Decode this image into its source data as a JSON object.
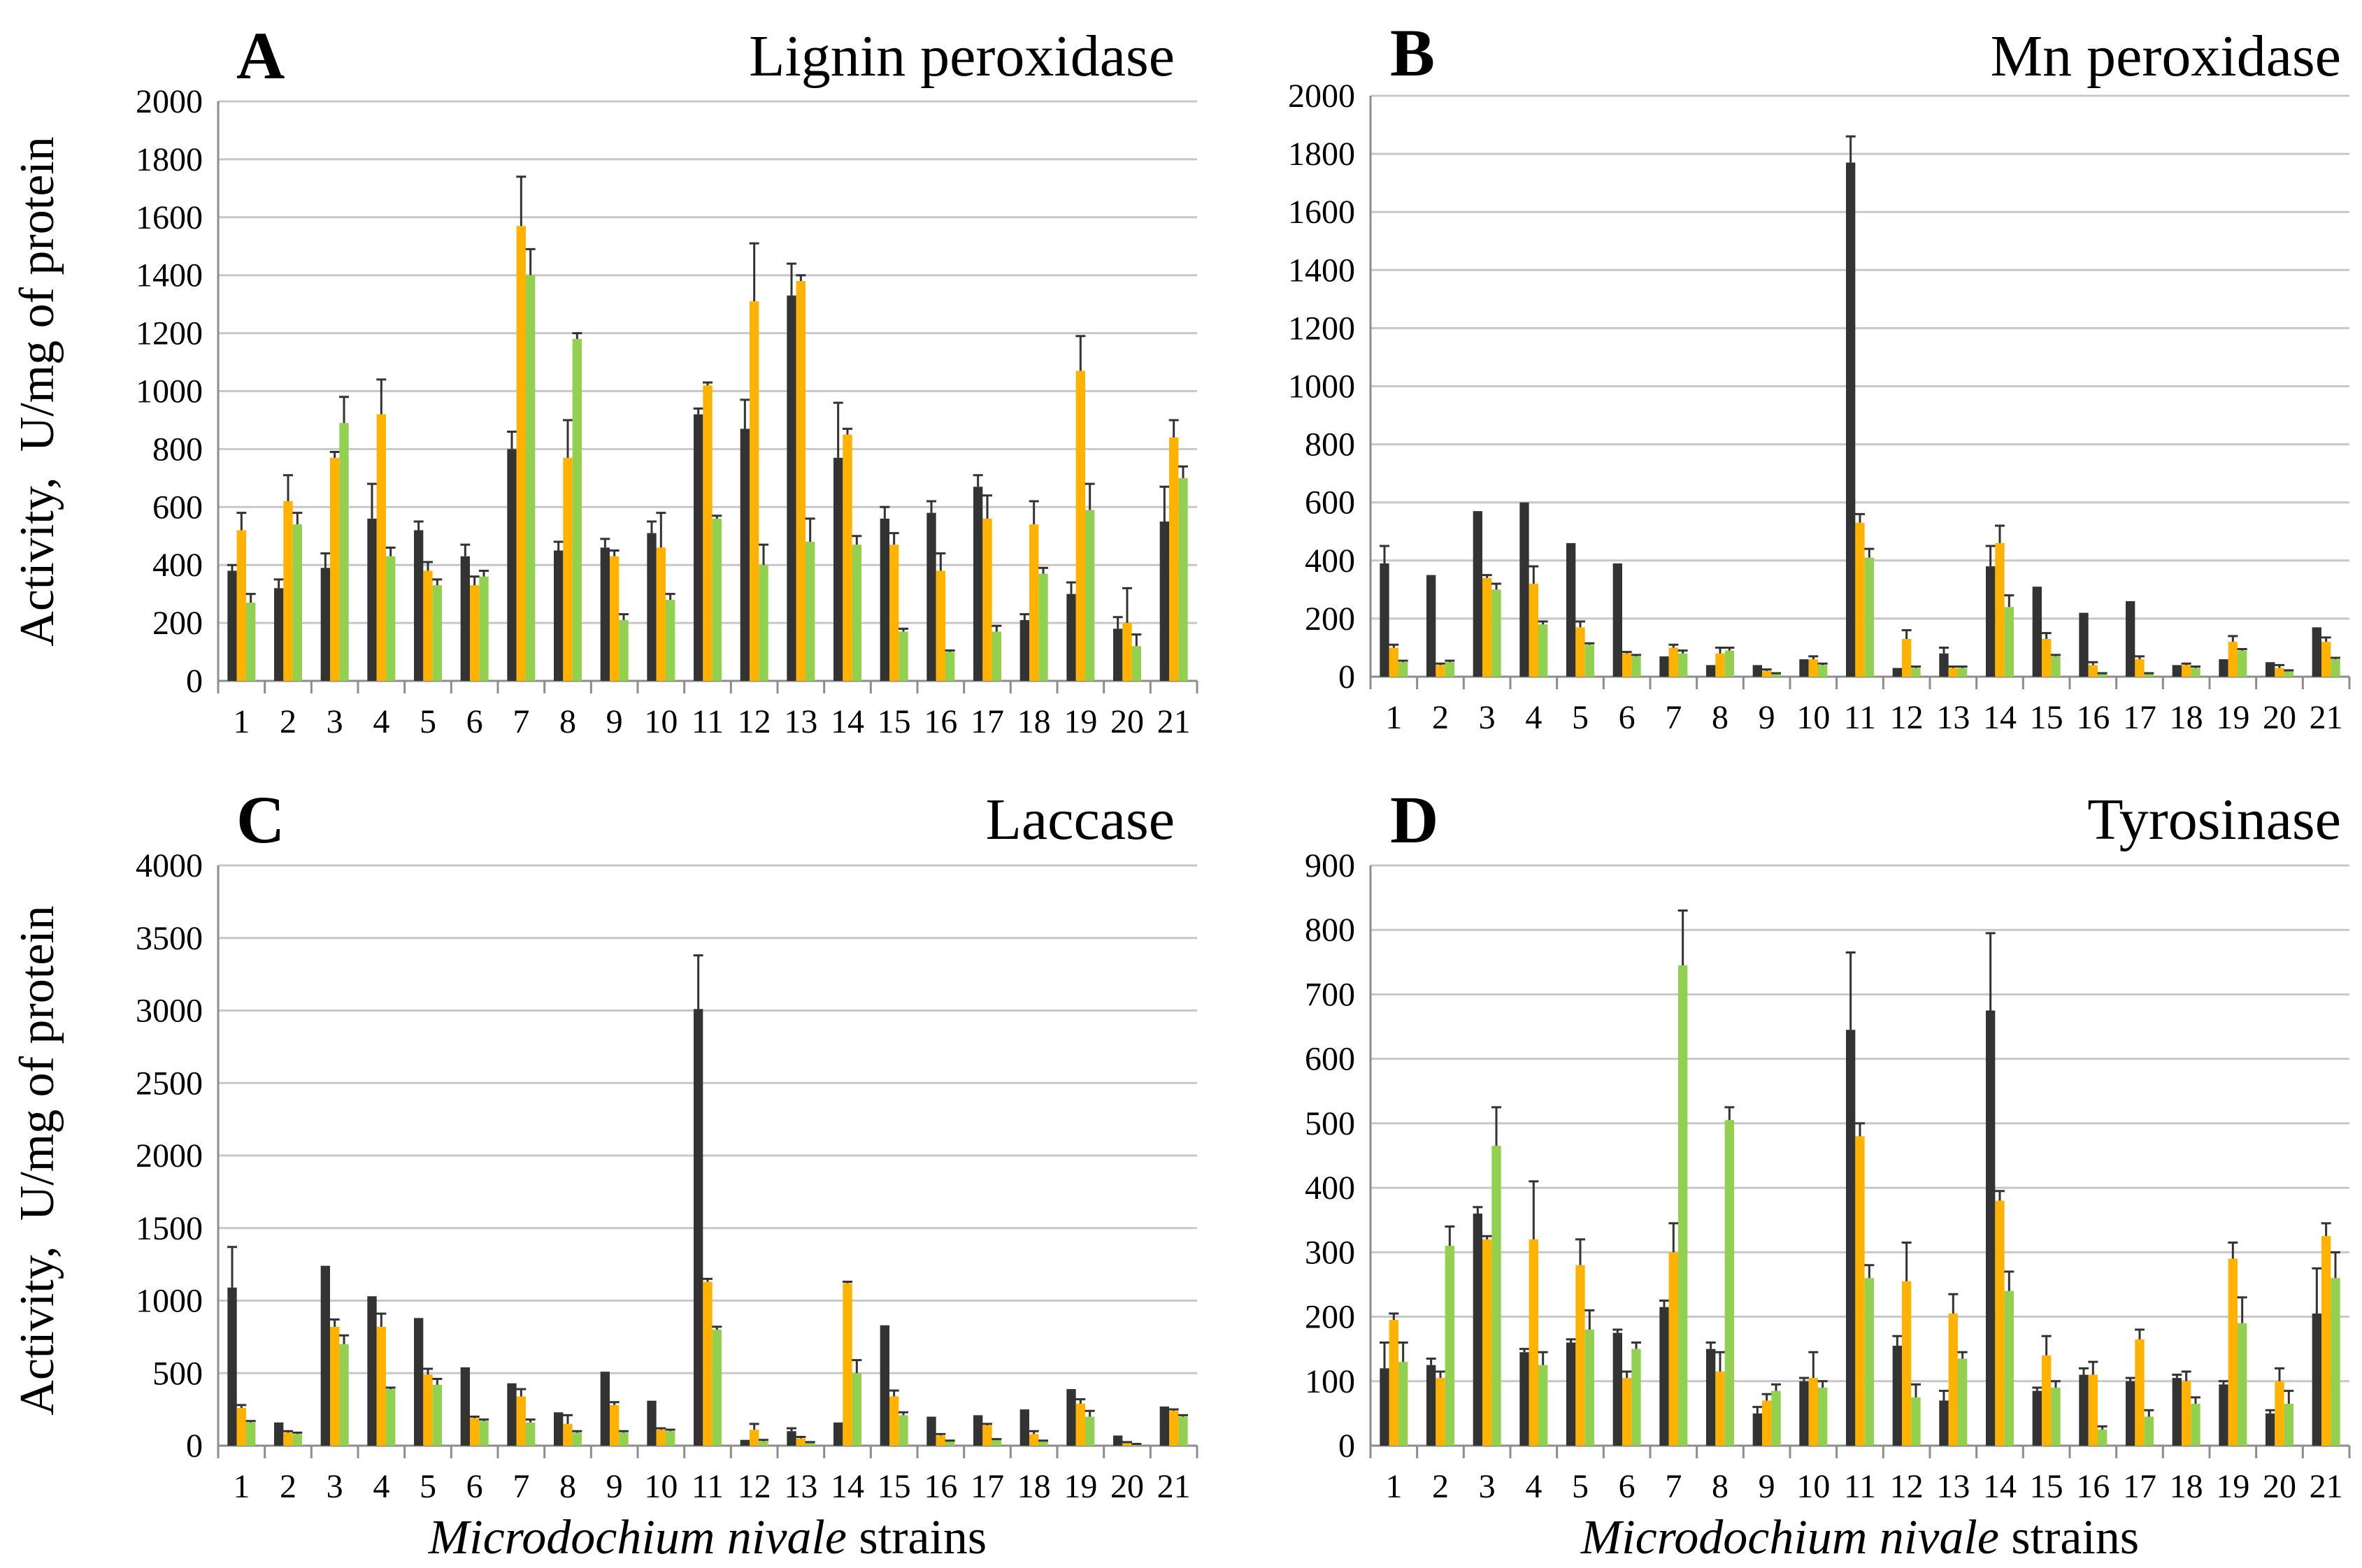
{
  "colors": {
    "series1": "#333333",
    "series2": "#FFB300",
    "series3": "#92D050"
  },
  "y_axis_label": {
    "left": "Activity,",
    "right": "U/mg of protein"
  },
  "x_axis_label": {
    "italic": "Microdochium nivale",
    "normal": " strains"
  },
  "chart_data": [
    {
      "type": "bar",
      "letter": "A",
      "title": "Lignin peroxidase",
      "categories": [
        "1",
        "2",
        "3",
        "4",
        "5",
        "6",
        "7",
        "8",
        "9",
        "10",
        "11",
        "12",
        "13",
        "14",
        "15",
        "16",
        "17",
        "18",
        "19",
        "20",
        "21"
      ],
      "ylim": [
        0,
        2000
      ],
      "yticks": [
        "0",
        "200",
        "400",
        "600",
        "800",
        "1000",
        "1200",
        "1400",
        "1600",
        "1800",
        "2000"
      ],
      "series": [
        {
          "name": "series1",
          "values": [
            380,
            320,
            390,
            560,
            520,
            430,
            800,
            450,
            460,
            510,
            920,
            870,
            1330,
            770,
            560,
            580,
            670,
            210,
            300,
            180,
            550
          ],
          "errors": [
            20,
            30,
            50,
            120,
            30,
            40,
            60,
            30,
            30,
            40,
            20,
            100,
            110,
            190,
            40,
            40,
            40,
            20,
            40,
            40,
            120
          ]
        },
        {
          "name": "series2",
          "values": [
            520,
            620,
            770,
            920,
            380,
            330,
            1570,
            770,
            430,
            460,
            1020,
            1310,
            1380,
            850,
            470,
            380,
            560,
            540,
            1070,
            200,
            840
          ],
          "errors": [
            60,
            90,
            20,
            120,
            30,
            30,
            170,
            130,
            20,
            120,
            10,
            200,
            20,
            20,
            40,
            60,
            80,
            80,
            120,
            120,
            60
          ]
        },
        {
          "name": "series3",
          "values": [
            270,
            540,
            890,
            430,
            330,
            360,
            1400,
            1180,
            210,
            280,
            560,
            400,
            480,
            470,
            170,
            100,
            170,
            370,
            590,
            120,
            700
          ],
          "errors": [
            30,
            40,
            90,
            30,
            20,
            20,
            90,
            20,
            20,
            20,
            10,
            70,
            80,
            30,
            10,
            5,
            20,
            20,
            90,
            40,
            40
          ]
        }
      ]
    },
    {
      "type": "bar",
      "letter": "B",
      "title": "Mn peroxidase",
      "categories": [
        "1",
        "2",
        "3",
        "4",
        "5",
        "6",
        "7",
        "8",
        "9",
        "10",
        "11",
        "12",
        "13",
        "14",
        "15",
        "16",
        "17",
        "18",
        "19",
        "20",
        "21"
      ],
      "ylim": [
        0,
        2000
      ],
      "yticks": [
        "0",
        "200",
        "400",
        "600",
        "800",
        "1000",
        "1200",
        "1400",
        "1600",
        "1800",
        "2000"
      ],
      "series": [
        {
          "name": "series1",
          "values": [
            390,
            350,
            570,
            600,
            460,
            390,
            70,
            40,
            40,
            60,
            1770,
            30,
            80,
            380,
            310,
            220,
            260,
            40,
            60,
            50,
            170
          ],
          "errors": [
            60,
            0,
            0,
            0,
            0,
            0,
            0,
            0,
            0,
            0,
            90,
            0,
            20,
            70,
            0,
            0,
            0,
            0,
            0,
            0,
            0
          ]
        },
        {
          "name": "series2",
          "values": [
            100,
            40,
            340,
            320,
            170,
            80,
            100,
            80,
            20,
            60,
            530,
            130,
            30,
            460,
            130,
            40,
            60,
            40,
            120,
            30,
            120
          ],
          "errors": [
            10,
            5,
            10,
            60,
            20,
            5,
            10,
            20,
            5,
            10,
            30,
            30,
            5,
            60,
            20,
            10,
            10,
            5,
            20,
            10,
            15
          ]
        },
        {
          "name": "series3",
          "values": [
            50,
            50,
            300,
            180,
            110,
            70,
            80,
            90,
            10,
            40,
            410,
            30,
            30,
            240,
            70,
            10,
            10,
            30,
            90,
            20,
            60
          ],
          "errors": [
            5,
            5,
            20,
            10,
            5,
            5,
            10,
            10,
            2,
            5,
            30,
            5,
            5,
            40,
            5,
            2,
            2,
            5,
            5,
            2,
            5
          ]
        }
      ]
    },
    {
      "type": "bar",
      "letter": "C",
      "title": "Laccase",
      "categories": [
        "1",
        "2",
        "3",
        "4",
        "5",
        "6",
        "7",
        "8",
        "9",
        "10",
        "11",
        "12",
        "13",
        "14",
        "15",
        "16",
        "17",
        "18",
        "19",
        "20",
        "21"
      ],
      "ylim": [
        0,
        4000
      ],
      "yticks": [
        "0",
        "500",
        "1000",
        "1500",
        "2000",
        "2500",
        "3000",
        "3500",
        "4000"
      ],
      "series": [
        {
          "name": "series1",
          "values": [
            1090,
            160,
            1240,
            1030,
            880,
            540,
            430,
            230,
            510,
            310,
            3010,
            40,
            100,
            160,
            830,
            200,
            210,
            250,
            390,
            70,
            270
          ],
          "errors": [
            280,
            0,
            0,
            0,
            0,
            0,
            0,
            0,
            0,
            0,
            370,
            0,
            20,
            0,
            0,
            0,
            0,
            0,
            0,
            0,
            0
          ]
        },
        {
          "name": "series2",
          "values": [
            260,
            90,
            820,
            820,
            490,
            190,
            340,
            150,
            280,
            110,
            1130,
            110,
            50,
            1120,
            340,
            70,
            140,
            80,
            290,
            20,
            240
          ],
          "errors": [
            20,
            10,
            50,
            90,
            40,
            10,
            50,
            60,
            20,
            10,
            20,
            40,
            10,
            10,
            40,
            10,
            10,
            20,
            30,
            5,
            10
          ]
        },
        {
          "name": "series3",
          "values": [
            160,
            80,
            700,
            390,
            420,
            170,
            160,
            90,
            90,
            100,
            800,
            30,
            20,
            500,
            210,
            30,
            40,
            30,
            200,
            10,
            200
          ],
          "errors": [
            10,
            10,
            60,
            10,
            40,
            10,
            20,
            10,
            10,
            10,
            20,
            10,
            5,
            90,
            20,
            5,
            5,
            5,
            40,
            2,
            10
          ]
        }
      ]
    },
    {
      "type": "bar",
      "letter": "D",
      "title": "Tyrosinase",
      "categories": [
        "1",
        "2",
        "3",
        "4",
        "5",
        "6",
        "7",
        "8",
        "9",
        "10",
        "11",
        "12",
        "13",
        "14",
        "15",
        "16",
        "17",
        "18",
        "19",
        "20",
        "21"
      ],
      "ylim": [
        0,
        900
      ],
      "yticks": [
        "0",
        "100",
        "200",
        "300",
        "400",
        "500",
        "600",
        "700",
        "800",
        "900"
      ],
      "series": [
        {
          "name": "series1",
          "values": [
            120,
            125,
            360,
            145,
            160,
            175,
            215,
            150,
            50,
            100,
            645,
            155,
            70,
            675,
            85,
            110,
            100,
            105,
            95,
            50,
            205
          ],
          "errors": [
            40,
            10,
            10,
            5,
            5,
            5,
            10,
            10,
            10,
            5,
            120,
            15,
            15,
            120,
            5,
            10,
            5,
            5,
            5,
            5,
            70
          ]
        },
        {
          "name": "series2",
          "values": [
            195,
            105,
            320,
            320,
            280,
            105,
            300,
            115,
            70,
            105,
            480,
            255,
            205,
            380,
            140,
            110,
            165,
            100,
            290,
            100,
            325
          ],
          "errors": [
            10,
            10,
            5,
            90,
            40,
            10,
            45,
            30,
            10,
            40,
            20,
            60,
            30,
            15,
            30,
            20,
            15,
            15,
            25,
            20,
            20
          ]
        },
        {
          "name": "series3",
          "values": [
            130,
            310,
            465,
            125,
            180,
            150,
            745,
            505,
            85,
            90,
            260,
            75,
            135,
            240,
            90,
            25,
            45,
            65,
            190,
            65,
            260
          ],
          "errors": [
            30,
            30,
            60,
            20,
            30,
            10,
            85,
            20,
            10,
            10,
            20,
            20,
            10,
            30,
            10,
            5,
            10,
            10,
            40,
            20,
            40
          ]
        }
      ]
    }
  ]
}
